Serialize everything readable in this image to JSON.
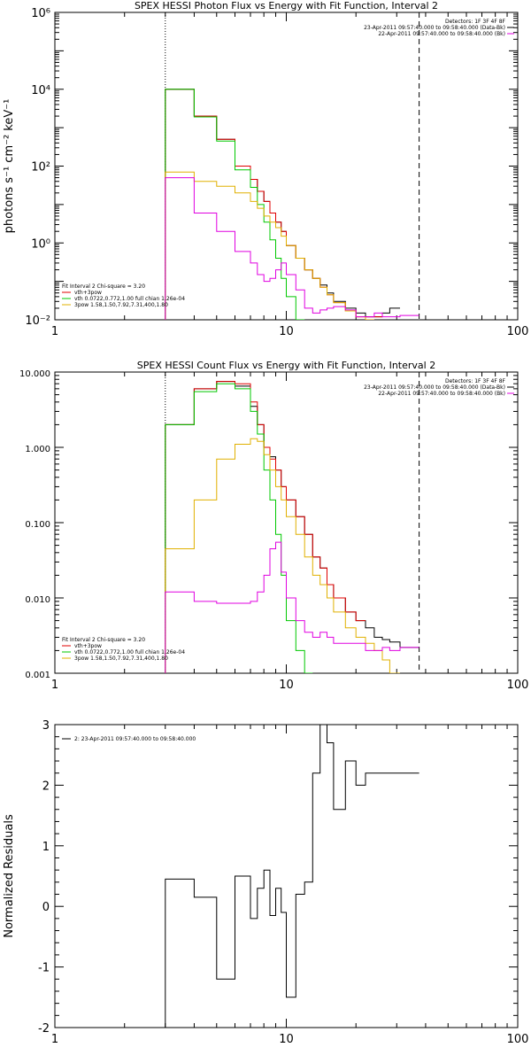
{
  "chart_data": [
    {
      "type": "line",
      "title": "SPEX HESSI Photon Flux vs Energy with Fit Function, Interval 2",
      "ylabel": "photons s⁻¹ cm⁻² keV⁻¹",
      "xscale": "log",
      "yscale": "log",
      "xlim": [
        1,
        100
      ],
      "ylim": [
        0.01,
        1000000
      ],
      "x_ticks": [
        "1",
        "10",
        "100"
      ],
      "y_ticks": [
        "10⁻²",
        "10⁰",
        "10²",
        "10⁴",
        "10⁶"
      ],
      "fit_range_lines": {
        "dotted": 3.0,
        "dashed": 37.5
      },
      "legend_right": [
        "Detectors: 1F 3F 4F 8F",
        "23-Apr-2011 09:57:40.000 to 09:58:40.000 (Data-Bk)",
        "22-Apr-2011 09:57:40.000 to 09:58:40.000 (Bk)"
      ],
      "legend_left": [
        "Fit Interval 2   Chi-square = 3.20",
        "vth+3pow",
        "vth 0.0722,0.772,1.00  full chian 1.26e-04",
        "3pow 1.58,1.50,7.92,7.31,400,1.80"
      ],
      "bin_edges": [
        3.0,
        4.0,
        5.0,
        6.0,
        7.0,
        7.5,
        8.0,
        8.5,
        9.0,
        9.5,
        10.0,
        11.0,
        12.0,
        13.0,
        14.0,
        15.0,
        16.0,
        18.0,
        20.0,
        22.0,
        24.0,
        26.0,
        28.0,
        31.0,
        34.0,
        37.5
      ],
      "series": [
        {
          "name": "Data-Bk",
          "color": "#000000",
          "values": [
            10000,
            2000,
            500,
            100,
            45,
            22,
            12,
            6,
            3.5,
            2.0,
            0.85,
            0.4,
            0.2,
            0.12,
            0.08,
            0.05,
            0.03,
            0.02,
            0.015,
            0.012,
            0.012,
            0.015,
            0.02,
            null,
            null
          ]
        },
        {
          "name": "vth+3pow",
          "color": "#e00000",
          "values": [
            10000,
            2000,
            500,
            100,
            45,
            22,
            12,
            6,
            3.5,
            2.0,
            0.85,
            0.4,
            0.2,
            0.12,
            0.07,
            0.045,
            0.028,
            0.017,
            0.012,
            0.012,
            0.012,
            null,
            null,
            null,
            null
          ]
        },
        {
          "name": "vth",
          "color": "#00c800",
          "values": [
            10000,
            1900,
            450,
            80,
            28,
            10,
            3.5,
            1.2,
            0.4,
            0.12,
            0.04,
            0.01,
            null,
            null,
            null,
            null,
            null,
            null,
            null,
            null,
            null,
            null,
            null,
            null,
            null
          ]
        },
        {
          "name": "3pow",
          "color": "#e0b000",
          "values": [
            70,
            40,
            30,
            20,
            12,
            8,
            5,
            3.5,
            2.5,
            1.5,
            0.85,
            0.4,
            0.2,
            0.12,
            0.07,
            0.045,
            0.028,
            0.017,
            0.012,
            0.01,
            null,
            null,
            null,
            null,
            null
          ]
        },
        {
          "name": "Bk",
          "color": "#e000e0",
          "values": [
            50,
            6,
            2,
            0.6,
            0.3,
            0.15,
            0.1,
            0.12,
            0.2,
            0.3,
            0.15,
            0.06,
            0.02,
            0.015,
            0.018,
            0.02,
            0.022,
            0.018,
            0.012,
            0.012,
            0.015,
            0.012,
            0.012,
            0.013,
            0.013
          ]
        }
      ]
    },
    {
      "type": "line",
      "title": "SPEX HESSI Count Flux vs Energy with Fit Function, Interval 2",
      "ylabel": "",
      "xscale": "log",
      "yscale": "log",
      "xlim": [
        1,
        100
      ],
      "ylim": [
        0.001,
        10
      ],
      "x_ticks": [
        "1",
        "10",
        "100"
      ],
      "y_ticks": [
        "0.001",
        "0.010",
        "0.100",
        "1.000",
        "10.000"
      ],
      "fit_range_lines": {
        "dotted": 3.0,
        "dashed": 37.5
      },
      "legend_right": [
        "Detectors: 1F 3F 4F 8F",
        "23-Apr-2011 09:57:40.000 to 09:58:40.000 (Data-Bk)",
        "22-Apr-2011 09:57:40.000 to 09:58:40.000 (Bk)"
      ],
      "legend_left": [
        "Fit Interval 2   Chi-square = 3.20",
        "vth+3pow",
        "vth 0.0722,0.772,1.00  full chian 1.26e-04",
        "3pow 1.58,1.50,7.92,7.31,400,1.80"
      ],
      "bin_edges": [
        3.0,
        4.0,
        5.0,
        6.0,
        7.0,
        7.5,
        8.0,
        8.5,
        9.0,
        9.5,
        10.0,
        11.0,
        12.0,
        13.0,
        14.0,
        15.0,
        16.0,
        18.0,
        20.0,
        22.0,
        24.0,
        26.0,
        28.0,
        31.0,
        34.0,
        37.5
      ],
      "series": [
        {
          "name": "Data-Bk",
          "color": "#000000",
          "values": [
            2.0,
            6.0,
            7.5,
            6.5,
            3.5,
            2.0,
            1.0,
            0.75,
            0.5,
            0.3,
            0.2,
            0.12,
            0.07,
            0.035,
            0.025,
            0.015,
            0.01,
            0.0065,
            0.005,
            0.004,
            0.003,
            0.0028,
            0.0026,
            0.0022,
            0.0022
          ]
        },
        {
          "name": "vth+3pow",
          "color": "#e00000",
          "values": [
            2.0,
            6.0,
            7.5,
            7.0,
            4.0,
            2.0,
            1.0,
            0.7,
            0.5,
            0.3,
            0.2,
            0.12,
            0.07,
            0.035,
            0.025,
            0.015,
            0.01,
            0.0065,
            0.005,
            null,
            null,
            null,
            null,
            null,
            null
          ]
        },
        {
          "name": "vth",
          "color": "#00c800",
          "values": [
            2.0,
            5.5,
            7.0,
            6.0,
            3.0,
            1.5,
            0.5,
            0.2,
            0.07,
            0.02,
            0.005,
            0.002,
            0.001,
            null,
            null,
            null,
            null,
            null,
            null,
            null,
            null,
            null,
            null,
            null,
            null
          ]
        },
        {
          "name": "3pow",
          "color": "#e0b000",
          "values": [
            0.045,
            0.2,
            0.7,
            1.1,
            1.3,
            1.2,
            0.8,
            0.5,
            0.3,
            0.2,
            0.12,
            0.07,
            0.035,
            0.02,
            0.015,
            0.01,
            0.0065,
            0.004,
            0.003,
            0.0025,
            0.002,
            0.0015,
            0.001,
            null,
            null
          ]
        },
        {
          "name": "Bk",
          "color": "#e000e0",
          "values": [
            0.012,
            0.009,
            0.0085,
            0.0085,
            0.009,
            0.012,
            0.02,
            0.045,
            0.055,
            0.022,
            0.01,
            0.005,
            0.0035,
            0.003,
            0.0035,
            0.003,
            0.0025,
            0.0025,
            0.0025,
            0.002,
            0.002,
            0.0022,
            0.002,
            0.0022,
            0.0022
          ]
        }
      ]
    },
    {
      "type": "line",
      "title": "",
      "ylabel": "Normalized Residuals",
      "xscale": "log",
      "yscale": "linear",
      "xlim": [
        1,
        100
      ],
      "ylim": [
        -2,
        3
      ],
      "x_ticks": [
        "1",
        "10",
        "100"
      ],
      "y_ticks": [
        "-2",
        "-1",
        "0",
        "1",
        "2",
        "3"
      ],
      "legend_left": [
        "2: 23-Apr-2011 09:57:40.000 to 09:58:40.000"
      ],
      "bin_edges": [
        3.0,
        4.0,
        5.0,
        6.0,
        7.0,
        7.5,
        8.0,
        8.5,
        9.0,
        9.5,
        10.0,
        11.0,
        12.0,
        13.0,
        14.0,
        15.0,
        16.0,
        18.0,
        20.0,
        22.0,
        24.0,
        26.0,
        28.0,
        31.0,
        34.0,
        37.5
      ],
      "series": [
        {
          "name": "2: 23-Apr-2011 09:57:40.000 to 09:58:40.000",
          "color": "#000000",
          "values": [
            0.45,
            0.15,
            -1.2,
            0.5,
            -0.2,
            0.3,
            0.6,
            -0.15,
            0.3,
            -0.1,
            -1.5,
            0.2,
            0.4,
            2.2,
            3.0,
            2.7,
            1.6,
            2.4,
            2.0,
            2.2,
            2.2,
            2.2,
            2.2,
            2.2,
            2.2
          ]
        }
      ]
    }
  ]
}
